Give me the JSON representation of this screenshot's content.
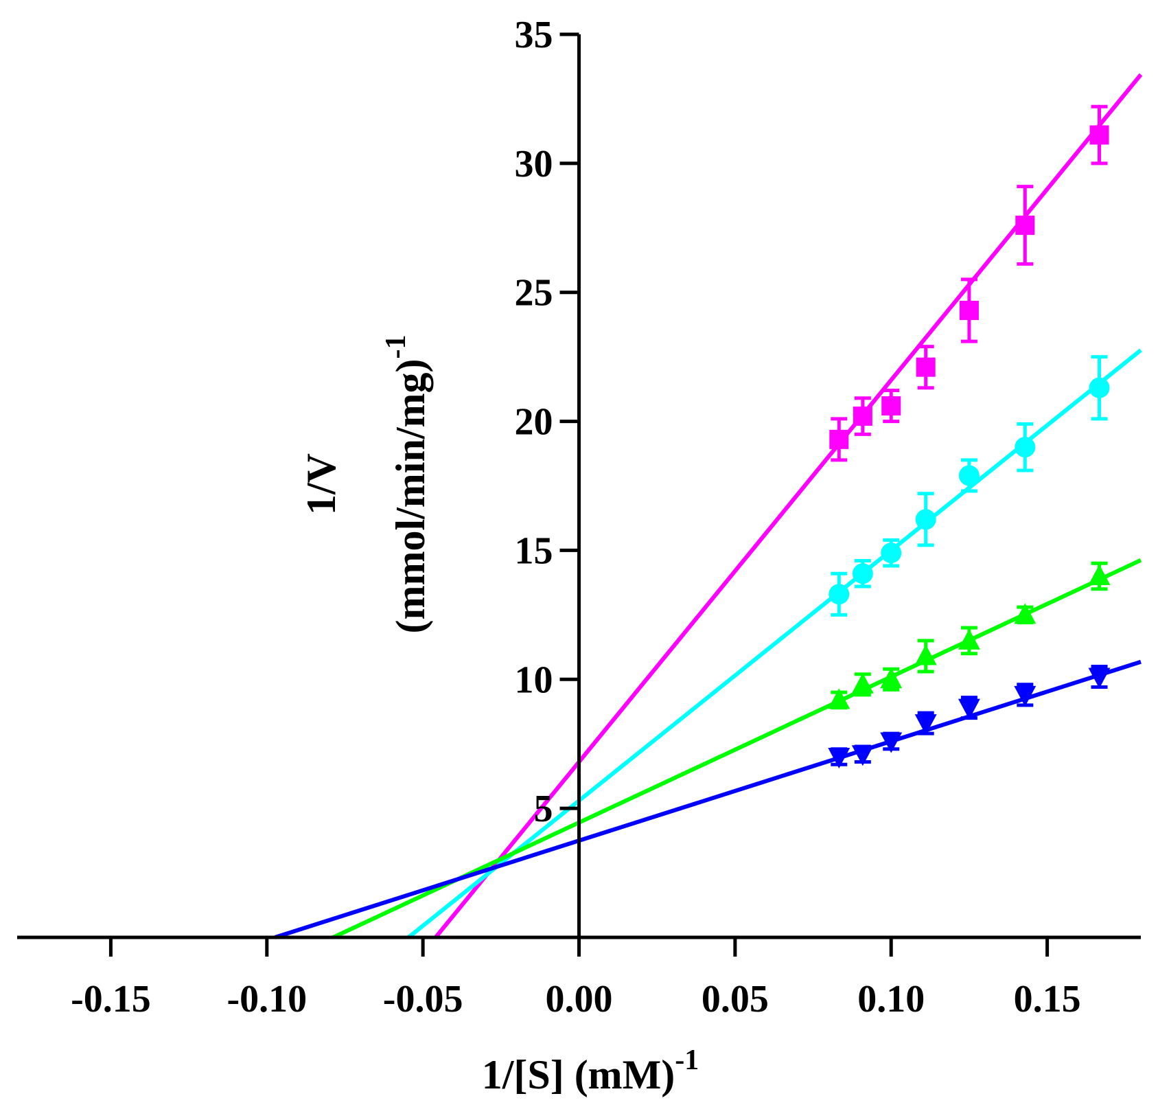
{
  "chart_data": {
    "type": "scatter",
    "title": "",
    "xlabel": "1/[S] (mM)",
    "xlabel_superscript": "-1",
    "ylabel_line1": "1/V",
    "ylabel_line2": "(mmol/min/mg)",
    "ylabel_superscript": "-1",
    "xlim": [
      -0.18,
      0.18
    ],
    "ylim": [
      0,
      35
    ],
    "x_ticks": [
      -0.15,
      -0.1,
      -0.05,
      0.0,
      0.05,
      0.1,
      0.15
    ],
    "x_tick_labels": [
      "-0.15",
      "-0.10",
      "-0.05",
      "0.00",
      "0.05",
      "0.10",
      "0.15"
    ],
    "y_ticks": [
      5,
      10,
      15,
      20,
      25,
      30,
      35
    ],
    "y_tick_labels": [
      "5",
      "10",
      "15",
      "20",
      "25",
      "30",
      "35"
    ],
    "x": [
      0.0833,
      0.0909,
      0.1,
      0.1111,
      0.125,
      0.1429,
      0.1667
    ],
    "series": [
      {
        "name": "series-magenta",
        "color": "#ff00ff",
        "marker": "square",
        "values": [
          19.3,
          20.2,
          20.6,
          22.1,
          24.3,
          27.6,
          31.1
        ],
        "errors": [
          0.8,
          0.7,
          0.6,
          0.8,
          1.2,
          1.5,
          1.1
        ],
        "fit": {
          "slope": 148.0,
          "intercept": 6.8
        }
      },
      {
        "name": "series-cyan",
        "color": "#00ffff",
        "marker": "circle",
        "values": [
          13.3,
          14.1,
          14.9,
          16.2,
          17.9,
          19.0,
          21.3
        ],
        "errors": [
          0.8,
          0.5,
          0.5,
          1.0,
          0.6,
          0.9,
          1.2
        ],
        "fit": {
          "slope": 97.0,
          "intercept": 5.3
        }
      },
      {
        "name": "series-green",
        "color": "#00ff00",
        "marker": "triangle-up",
        "values": [
          9.2,
          9.8,
          10.0,
          10.9,
          11.5,
          12.5,
          14.0
        ],
        "errors": [
          0.3,
          0.4,
          0.4,
          0.6,
          0.5,
          0.3,
          0.5
        ],
        "fit": {
          "slope": 56.5,
          "intercept": 4.45
        }
      },
      {
        "name": "series-blue",
        "color": "#0000ff",
        "marker": "triangle-down",
        "values": [
          7.0,
          7.1,
          7.6,
          8.3,
          8.9,
          9.4,
          10.1
        ],
        "errors": [
          0.3,
          0.3,
          0.3,
          0.4,
          0.4,
          0.4,
          0.4
        ],
        "fit": {
          "slope": 38.5,
          "intercept": 3.75
        }
      }
    ]
  }
}
